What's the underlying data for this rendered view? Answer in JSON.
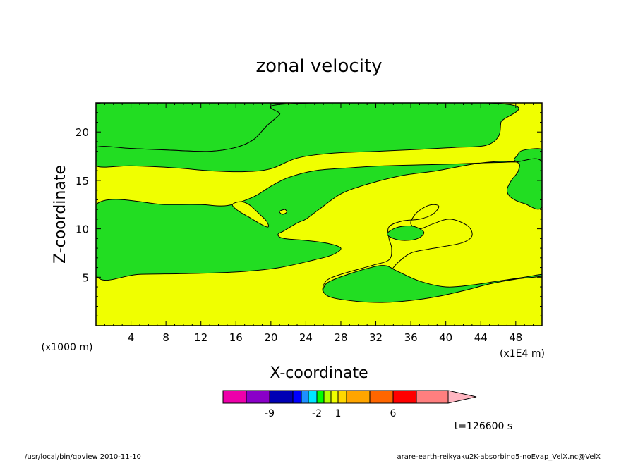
{
  "chart_data": {
    "type": "contour",
    "title": "zonal velocity",
    "xlabel": "X-coordinate",
    "ylabel": "Z-coordinate",
    "x_unit": "(x1E4 m)",
    "y_unit": "(x1000 m)",
    "xlim": [
      0,
      51
    ],
    "ylim": [
      0,
      23
    ],
    "xticks": [
      4,
      8,
      12,
      16,
      20,
      24,
      28,
      32,
      36,
      40,
      44,
      48
    ],
    "yticks": [
      5,
      10,
      15,
      20
    ],
    "fill_colors": {
      "positive": "#F0FF00",
      "negative": "#22DD22"
    },
    "regions": [
      {
        "sign": "negative",
        "points": [
          [
            0,
            18.4
          ],
          [
            4,
            18.3
          ],
          [
            9,
            18.1
          ],
          [
            13,
            18.0
          ],
          [
            16,
            18.4
          ],
          [
            18,
            19.2
          ],
          [
            19.5,
            20.6
          ],
          [
            21,
            21.8
          ],
          [
            22,
            22.9
          ],
          [
            0,
            22.9
          ]
        ]
      },
      {
        "sign": "negative",
        "points": [
          [
            0,
            16.5
          ],
          [
            4,
            16.5
          ],
          [
            9,
            16.3
          ],
          [
            13,
            16.0
          ],
          [
            17,
            15.9
          ],
          [
            20,
            16.2
          ],
          [
            23,
            17.3
          ],
          [
            27,
            17.8
          ],
          [
            32,
            18.0
          ],
          [
            37,
            18.2
          ],
          [
            41,
            18.4
          ],
          [
            44.5,
            18.6
          ],
          [
            46,
            19.5
          ],
          [
            46.3,
            21
          ],
          [
            46.6,
            22.9
          ],
          [
            22,
            22.9
          ],
          [
            21,
            21.8
          ],
          [
            19.5,
            20.6
          ],
          [
            18,
            19.2
          ],
          [
            16,
            18.4
          ],
          [
            13,
            18.0
          ],
          [
            9,
            18.1
          ],
          [
            4,
            18.3
          ],
          [
            0,
            18.4
          ]
        ]
      },
      {
        "sign": "negative",
        "points": [
          [
            51,
            18.2
          ],
          [
            48.8,
            18.1
          ],
          [
            48.2,
            17.6
          ],
          [
            48,
            17.0
          ],
          [
            51,
            16.9
          ]
        ]
      },
      {
        "sign": "negative",
        "points": [
          [
            0,
            12.5
          ],
          [
            8,
            12.5
          ],
          [
            12,
            12.5
          ],
          [
            15,
            12.4
          ],
          [
            18,
            13.3
          ],
          [
            20,
            14.4
          ],
          [
            22,
            15.3
          ],
          [
            25,
            16.0
          ],
          [
            29,
            16.3
          ],
          [
            33,
            16.5
          ],
          [
            37,
            16.6
          ],
          [
            41,
            16.7
          ],
          [
            44,
            16.8
          ],
          [
            46,
            16.85
          ],
          [
            48,
            16.9
          ],
          [
            51,
            16.9
          ],
          [
            51,
            12.3
          ],
          [
            49,
            12.6
          ],
          [
            47.5,
            13.2
          ],
          [
            47,
            14.0
          ],
          [
            47.5,
            15.0
          ],
          [
            48.3,
            16.0
          ],
          [
            48,
            16.9
          ],
          [
            44,
            16.8
          ],
          [
            39,
            16.0
          ],
          [
            35,
            15.5
          ],
          [
            31,
            14.6
          ],
          [
            28,
            13.6
          ],
          [
            25.5,
            12.0
          ],
          [
            24,
            11.0
          ],
          [
            23,
            10.6
          ],
          [
            21.5,
            9.8
          ],
          [
            20.8,
            9.4
          ],
          [
            21.5,
            9.0
          ],
          [
            24,
            8.8
          ],
          [
            26.5,
            8.5
          ],
          [
            28,
            8.0
          ],
          [
            27,
            7.3
          ],
          [
            25,
            6.8
          ],
          [
            21,
            6.0
          ],
          [
            17,
            5.6
          ],
          [
            12,
            5.4
          ],
          [
            5,
            5.3
          ],
          [
            0,
            5.2
          ]
        ]
      },
      {
        "sign": "positive",
        "points": [
          [
            15.6,
            12.5
          ],
          [
            16.5,
            12.8
          ],
          [
            17.5,
            12.5
          ],
          [
            18.6,
            11.6
          ],
          [
            19.5,
            10.8
          ],
          [
            19.7,
            10.2
          ],
          [
            19,
            10.4
          ],
          [
            17.5,
            11.2
          ],
          [
            16.2,
            11.9
          ]
        ]
      },
      {
        "sign": "positive",
        "points": [
          [
            21.0,
            11.8
          ],
          [
            21.6,
            12.0
          ],
          [
            21.8,
            11.7
          ],
          [
            21.3,
            11.5
          ]
        ]
      },
      {
        "sign": "positive",
        "points": [
          [
            33.5,
            10.2
          ],
          [
            35,
            10.8
          ],
          [
            37,
            11.0
          ],
          [
            38.5,
            11.5
          ],
          [
            39.2,
            12.3
          ],
          [
            38.5,
            12.5
          ],
          [
            37.5,
            12.2
          ],
          [
            36.5,
            11.5
          ],
          [
            36,
            10.5
          ],
          [
            37,
            10.0
          ],
          [
            38.5,
            10.5
          ],
          [
            40.5,
            11.0
          ],
          [
            42.5,
            10.3
          ],
          [
            43,
            9.3
          ],
          [
            42,
            8.6
          ],
          [
            40,
            8.2
          ],
          [
            38,
            7.9
          ],
          [
            36,
            7.5
          ],
          [
            34.5,
            6.5
          ],
          [
            33.5,
            5.5
          ],
          [
            32,
            4.8
          ],
          [
            30,
            4.2
          ],
          [
            27.5,
            3.8
          ],
          [
            26,
            3.5
          ],
          [
            26.3,
            4.6
          ],
          [
            28,
            5.3
          ],
          [
            31.5,
            6.2
          ],
          [
            33.5,
            6.8
          ],
          [
            33.8,
            8.0
          ],
          [
            33.5,
            9.0
          ]
        ]
      },
      {
        "sign": "negative",
        "points": [
          [
            33.3,
            9.5
          ],
          [
            34.3,
            10.1
          ],
          [
            35.8,
            10.3
          ],
          [
            36.8,
            10.1
          ],
          [
            37.5,
            9.6
          ],
          [
            36.8,
            9.0
          ],
          [
            35.3,
            8.8
          ],
          [
            34,
            9.0
          ]
        ]
      },
      {
        "sign": "negative",
        "points": [
          [
            26,
            3.5
          ],
          [
            27,
            2.9
          ],
          [
            30,
            2.5
          ],
          [
            33,
            2.4
          ],
          [
            36,
            2.6
          ],
          [
            39,
            3.0
          ],
          [
            42,
            3.6
          ],
          [
            45,
            4.3
          ],
          [
            48,
            4.8
          ],
          [
            51,
            5.1
          ],
          [
            51,
            5.3
          ],
          [
            49,
            5.0
          ],
          [
            46,
            4.6
          ],
          [
            43,
            4.2
          ],
          [
            40,
            4.0
          ],
          [
            37,
            4.6
          ],
          [
            34.5,
            5.6
          ],
          [
            33,
            6.2
          ],
          [
            31,
            5.9
          ],
          [
            28.5,
            5.2
          ],
          [
            26.8,
            4.6
          ],
          [
            26.2,
            4.2
          ]
        ]
      }
    ],
    "colorbar": {
      "colors": [
        "#EE00AA",
        "#8A00C8",
        "#0000B4",
        "#0000FF",
        "#1E90FF",
        "#00E5FF",
        "#00FF00",
        "#B4FF00",
        "#F0FF00",
        "#FFD700",
        "#FFA500",
        "#FF6600",
        "#FF0000",
        "#FF7F7F",
        "#FFB6C1"
      ],
      "labels": [
        "-9",
        "-2",
        "1",
        "6"
      ]
    },
    "time_label": "t=126600 s"
  },
  "footer": {
    "left": "/usr/local/bin/gpview  2010-11-10",
    "right": "arare-earth-reikyaku2K-absorbing5-noEvap_VelX.nc@VelX"
  }
}
